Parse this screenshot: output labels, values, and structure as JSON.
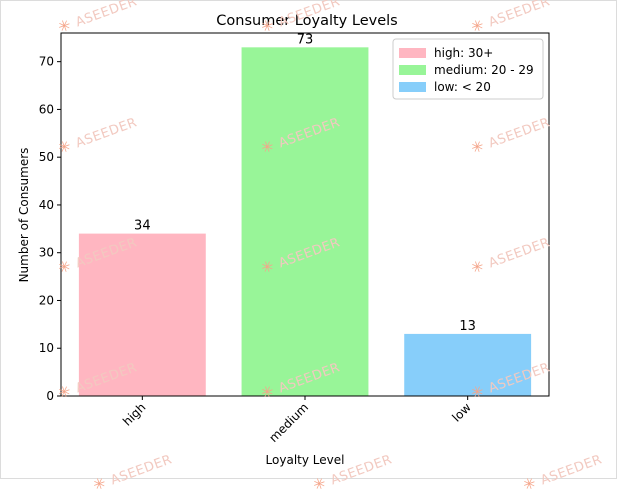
{
  "chart_data": {
    "type": "bar",
    "title": "Consumer Loyalty Levels",
    "xlabel": "Loyalty Level",
    "ylabel": "Number of Consumers",
    "categories": [
      "high",
      "medium",
      "low"
    ],
    "values": [
      34,
      73,
      13
    ],
    "data_labels": [
      "34",
      "73",
      "13"
    ],
    "colors": [
      "#ffb6c1",
      "#98f598",
      "#87cefa"
    ],
    "ylim": [
      0,
      76
    ],
    "yticks": [
      0,
      10,
      20,
      30,
      40,
      50,
      60,
      70
    ],
    "grid": false,
    "legend": {
      "placement": "top-right",
      "entries": [
        "high: 30+",
        "medium: 20 - 29",
        "low: < 20"
      ]
    }
  },
  "watermark": {
    "text": "ASEEDER",
    "color": "#f2c9c0"
  }
}
